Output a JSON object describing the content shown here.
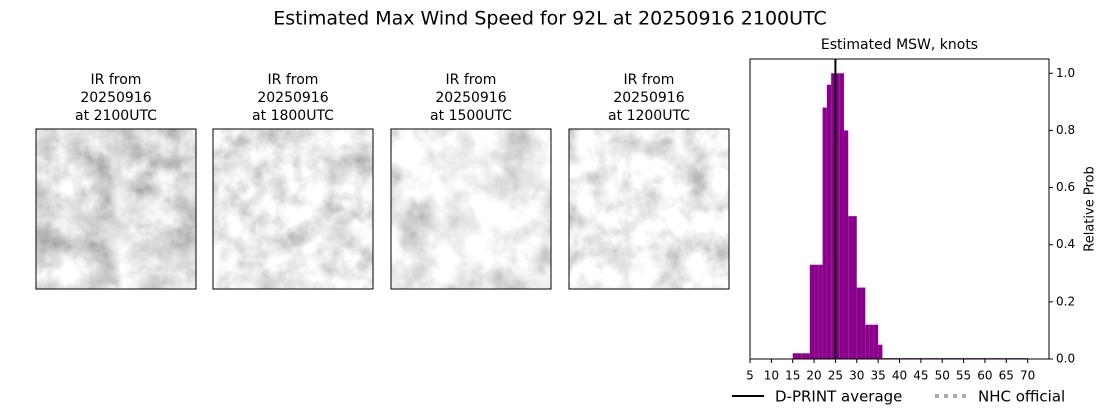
{
  "title": "Estimated Max Wind Speed for 92L at 20250916 2100UTC",
  "panels": [
    {
      "title_lines": [
        "IR from",
        "20250916",
        "at 2100UTC"
      ]
    },
    {
      "title_lines": [
        "IR from",
        "20250916",
        "at 1800UTC"
      ]
    },
    {
      "title_lines": [
        "IR from",
        "20250916",
        "at 1500UTC"
      ]
    },
    {
      "title_lines": [
        "IR from",
        "20250916",
        "at 1200UTC"
      ]
    }
  ],
  "chart_data": {
    "type": "histogram",
    "title": "Estimated MSW, knots",
    "ylabel": "Relative Prob",
    "bins": [
      15,
      16,
      17,
      18,
      19,
      20,
      21,
      22,
      23,
      24,
      25,
      26,
      27,
      28,
      29,
      30,
      31,
      32,
      33,
      34,
      35,
      36,
      37,
      38,
      39,
      40,
      41,
      42,
      43,
      44,
      45,
      46,
      47,
      48,
      49,
      50,
      51,
      52,
      53,
      54,
      55,
      56,
      57,
      58,
      59,
      60,
      61,
      62,
      63,
      64,
      65,
      66,
      67,
      68,
      69,
      70
    ],
    "values": [
      0.02,
      0.02,
      0.02,
      0.02,
      0.33,
      0.33,
      0.33,
      0.88,
      0.96,
      1.0,
      1.0,
      1.0,
      0.8,
      0.5,
      0.5,
      0.25,
      0.25,
      0.12,
      0.12,
      0.12,
      0.05,
      0.003,
      0.003,
      0.003,
      0.003,
      0.003,
      0.003,
      0.003,
      0.003,
      0.003,
      0.003,
      0.003,
      0.003,
      0.003,
      0.003,
      0.003,
      0.003,
      0.003,
      0.003,
      0.003,
      0.003,
      0.003,
      0.003,
      0.003,
      0.003,
      0.003,
      0.003,
      0.003,
      0.003,
      0.003,
      0.003,
      0.003,
      0.003,
      0.003,
      0.003
    ],
    "color": "#8b008b",
    "xlim": [
      5,
      75
    ],
    "xticks": [
      5,
      10,
      15,
      20,
      25,
      30,
      35,
      40,
      45,
      50,
      55,
      60,
      65,
      70
    ],
    "ylim": [
      0,
      1.05
    ],
    "yticks": [
      {
        "value": 0,
        "label": "0.0"
      },
      0.2,
      0.4,
      0.6,
      0.8,
      {
        "value": 1,
        "label": "1.0"
      }
    ],
    "reference_lines": [
      {
        "name": "D-PRINT average",
        "color": "#000000",
        "style": "solid",
        "x": 25
      },
      {
        "name": "NHC official",
        "color": "#aaaaaa",
        "style": "dotted",
        "x": null
      }
    ]
  }
}
